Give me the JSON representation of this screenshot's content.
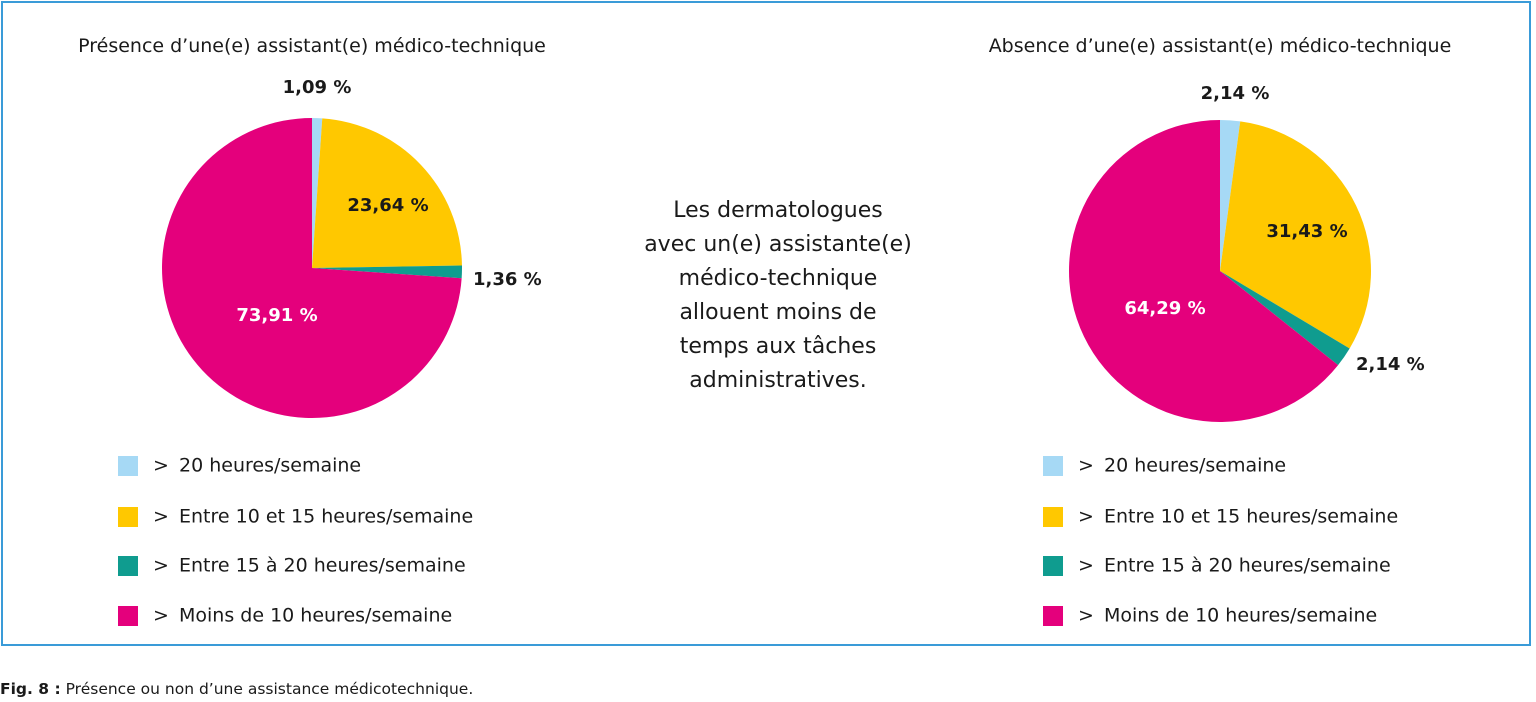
{
  "chart_data": [
    {
      "type": "pie",
      "title": "Présence d’une(e) assistant(e) médico-technique",
      "categories": [
        "> 20 heures/semaine",
        "Entre 10 et 15 heures/semaine",
        "Entre 15 à 20 heures/semaine",
        "> Moins de 10 heures/semaine"
      ],
      "values": [
        1.09,
        23.64,
        1.36,
        73.91
      ],
      "labels": [
        "1,09 %",
        "23,64 %",
        "1,36 %",
        "73,91 %"
      ],
      "colors": [
        "#a6d9f5",
        "#ffc800",
        "#0f9c8f",
        "#e4007c"
      ],
      "legend_position": "bottom"
    },
    {
      "type": "pie",
      "title": "Absence d’une(e) assistant(e) médico-technique",
      "categories": [
        "> 20 heures/semaine",
        "Entre 10 et 15 heures/semaine",
        "Entre 15 à 20 heures/semaine",
        "> Moins de 10 heures/semaine"
      ],
      "values": [
        2.14,
        31.43,
        2.14,
        64.29
      ],
      "labels": [
        "2,14 %",
        "31,43 %",
        "2,14 %",
        "64,29 %"
      ],
      "colors": [
        "#a6d9f5",
        "#ffc800",
        "#0f9c8f",
        "#e4007c"
      ],
      "legend_position": "bottom"
    }
  ],
  "legend": {
    "bullet": ">",
    "items": [
      "20 heures/semaine",
      "Entre 10 et 15 heures/semaine",
      "Entre 15 à 20 heures/semaine",
      "Moins de 10 heures/semaine"
    ]
  },
  "center_text": {
    "lines": [
      "Les dermatologues",
      "avec un(e) assistante(e)",
      "médico-technique",
      "allouent moins de",
      "temps aux tâches",
      "administratives."
    ]
  },
  "caption": {
    "label": "Fig. 8 :",
    "text": "Présence ou non d’une assistance médicotechnique."
  }
}
